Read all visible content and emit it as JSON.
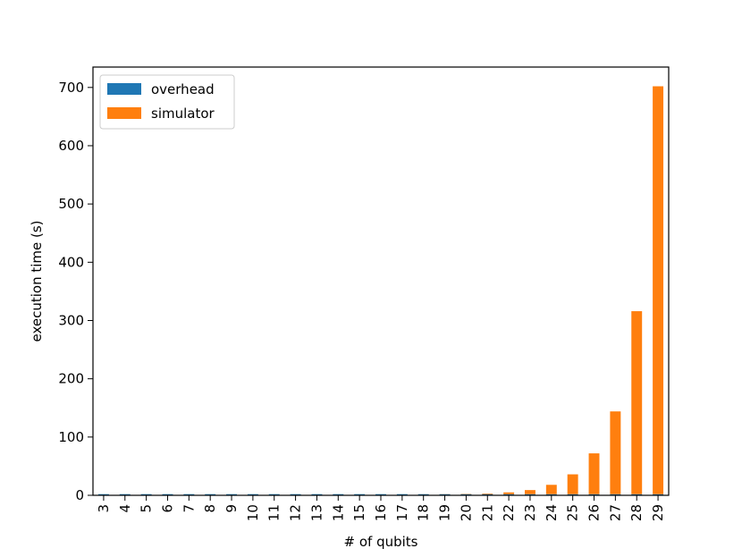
{
  "chart_data": {
    "type": "bar",
    "stacked": true,
    "categories": [
      "3",
      "4",
      "5",
      "6",
      "7",
      "8",
      "9",
      "10",
      "11",
      "12",
      "13",
      "14",
      "15",
      "16",
      "17",
      "18",
      "19",
      "20",
      "21",
      "22",
      "23",
      "24",
      "25",
      "26",
      "27",
      "28",
      "29"
    ],
    "series": [
      {
        "name": "overhead",
        "color": "#1f77b4",
        "values": [
          2,
          2,
          2,
          2,
          2,
          2,
          2,
          2,
          2,
          2,
          2,
          2,
          2,
          2,
          2,
          2,
          2,
          2,
          2,
          2,
          2,
          2,
          2,
          2,
          2,
          2,
          2
        ]
      },
      {
        "name": "simulator",
        "color": "#ff7f0e",
        "values": [
          0,
          0,
          0,
          0,
          0,
          0,
          0,
          0,
          0,
          0,
          0,
          0,
          0,
          0,
          0,
          0.1,
          0.2,
          0.5,
          1,
          3,
          7,
          16,
          34,
          70,
          142,
          314,
          700
        ]
      }
    ],
    "xlabel": "# of qubits",
    "ylabel": "execution time (s)",
    "ylim": [
      0,
      735
    ],
    "yticks": [
      0,
      100,
      200,
      300,
      400,
      500,
      600,
      700
    ],
    "grid": false,
    "legend_position": "top-left"
  }
}
